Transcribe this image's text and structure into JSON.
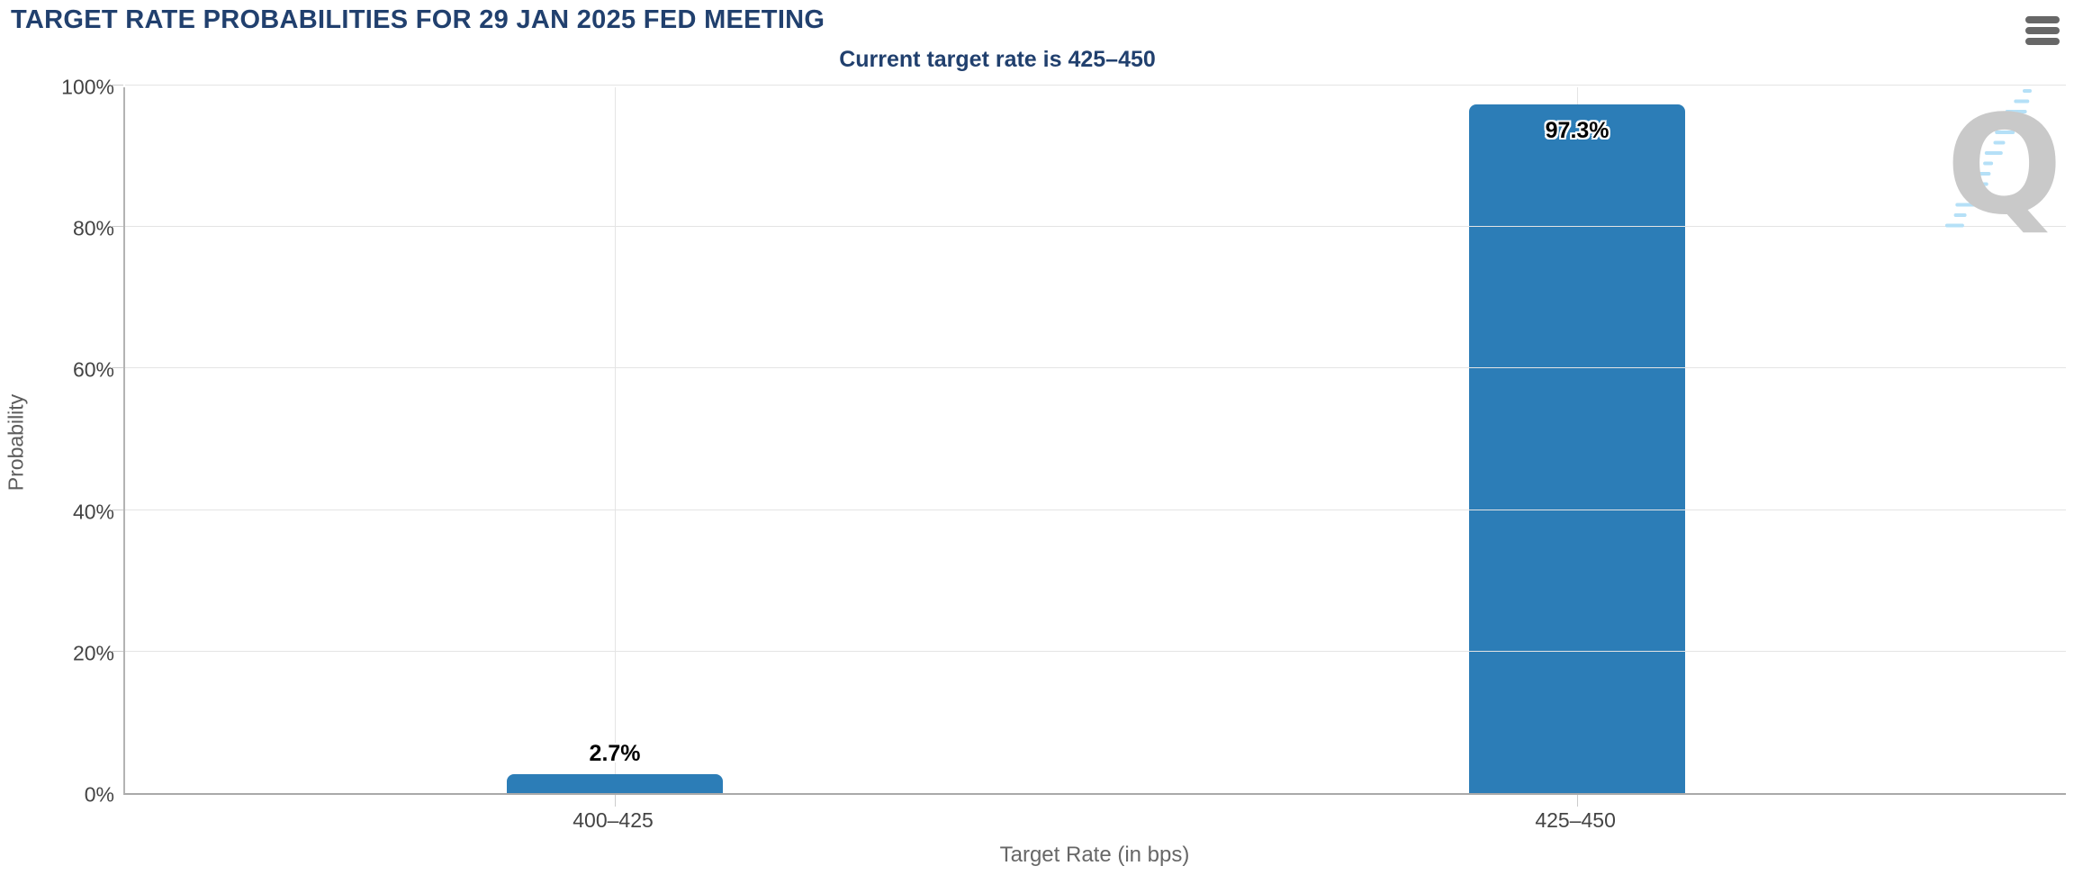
{
  "header": {
    "title": "TARGET RATE PROBABILITIES FOR 29 JAN 2025 FED MEETING"
  },
  "watermark": {
    "letter": "Q"
  },
  "chart_data": {
    "type": "bar",
    "title": "TARGET RATE PROBABILITIES FOR 29 JAN 2025 FED MEETING",
    "subtitle": "Current target rate is 425–450",
    "categories": [
      "400–425",
      "425–450"
    ],
    "values": [
      2.7,
      97.3
    ],
    "value_labels": [
      "2.7%",
      "97.3%"
    ],
    "xlabel": "Target Rate (in bps)",
    "ylabel": "Probability",
    "ylim": [
      0,
      100
    ],
    "yticks": [
      0,
      20,
      40,
      60,
      80,
      100
    ],
    "ytick_labels": [
      "0%",
      "20%",
      "40%",
      "60%",
      "80%",
      "100%"
    ],
    "grid": true,
    "legend_position": "none",
    "bar_color": "#2c7db7"
  },
  "colors": {
    "title_navy": "#21406e",
    "bar_blue": "#2c7db7",
    "axis_text": "#444444",
    "axis_title": "#5c5c5c",
    "menu_icon_gray": "#676767",
    "watermark_gray": "#c9c9c9",
    "watermark_blue": "#b5e0f7"
  }
}
